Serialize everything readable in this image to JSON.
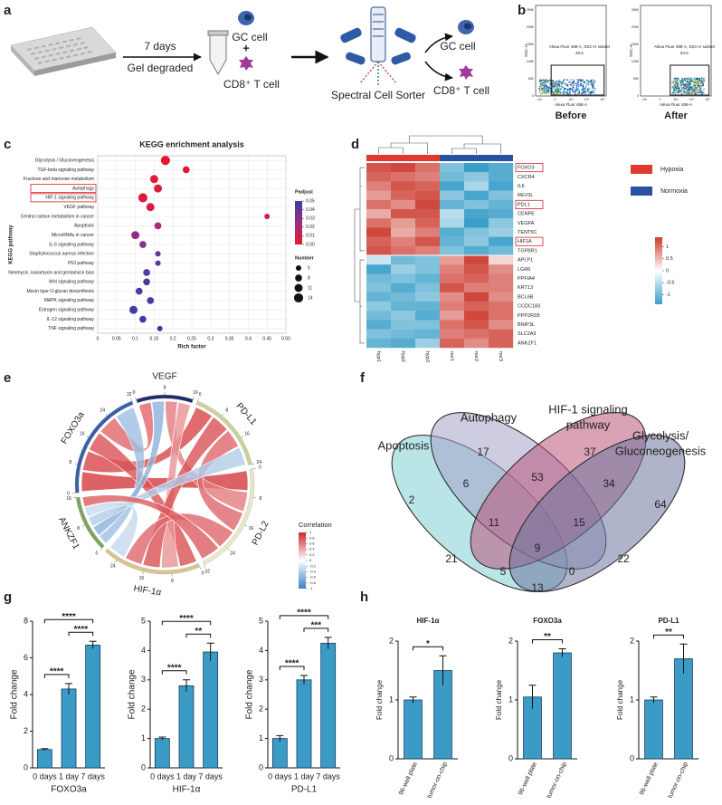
{
  "panel_labels": [
    "a",
    "b",
    "c",
    "d",
    "e",
    "f",
    "g",
    "h"
  ],
  "diagram_a": {
    "step_time": "7 days",
    "step_action": "Gel degraded",
    "input_cell_1": "GC cell",
    "plus": "+",
    "input_cell_2": "CD8⁺ T cell",
    "sorter": "Spectral Cell Sorter",
    "output_cell_1": "GC cell",
    "output_cell_2": "CD8⁺ T cell"
  },
  "diagram_b": {
    "y_label": "SSC-H",
    "x_label": "Alexa Fluor 488-A",
    "yticks": [
      "0",
      "50K",
      "100K",
      "150K",
      "200K",
      "250K"
    ],
    "xticks": [
      "-10³",
      "0",
      "10³",
      "10⁴",
      "10⁵"
    ],
    "plots": [
      {
        "caption": "Before",
        "gate_label": "Alexa Fluor 488-A, SSC-H subset",
        "percent": "49.5"
      },
      {
        "caption": "After",
        "gate_label": "Alexa Fluor 488-A, SSC-H subset",
        "percent": "94.6"
      }
    ]
  },
  "chart_data": [
    {
      "type": "dot",
      "title": "KEGG enrichment analysis",
      "x_label": "Rich factor",
      "y_label": "KEGG pathway",
      "categories": [
        "Glycolysis / Gluconeogenesis",
        "TGF-beta signaling pathway",
        "Fructose and mannose metabolism",
        "Autophagy",
        "HIF-1 signaling pathway",
        "VEGF pathway",
        "Central carbon metabolism in cancer",
        "Apoptosis",
        "MicroRNAs in cancer",
        "IL-6 signaling pathway",
        "Staphylococcus aureus infection",
        "P53 pathway",
        "Neomycin, kanamycin and gentamicin bios",
        "Wnt signaling pathway",
        "Mucin type O-glycan biosynthesis",
        "MAPK signaling pathway",
        "Estrogen signaling pathway",
        "IL-12 signaling pathway",
        "TNF signaling pathway"
      ],
      "values": [
        0.18,
        0.235,
        0.15,
        0.16,
        0.12,
        0.14,
        0.45,
        0.16,
        0.1,
        0.12,
        0.16,
        0.16,
        0.13,
        0.13,
        0.11,
        0.14,
        0.095,
        0.12,
        0.165
      ],
      "padj": [
        0.001,
        0.002,
        0.003,
        0.004,
        0.005,
        0.006,
        0.008,
        0.02,
        0.028,
        0.03,
        0.04,
        0.042,
        0.044,
        0.045,
        0.046,
        0.047,
        0.048,
        0.049,
        0.05
      ],
      "counts": [
        14,
        8,
        11,
        11,
        14,
        11,
        5,
        8,
        11,
        8,
        5,
        5,
        8,
        8,
        8,
        8,
        11,
        8,
        5
      ],
      "xlim": [
        0,
        0.5
      ],
      "xticks": [
        0,
        0.05,
        0.1,
        0.15,
        0.2,
        0.25,
        0.3,
        0.35,
        0.4,
        0.45,
        {
          "value": 0.5,
          "label": "0.50"
        }
      ],
      "grid": true,
      "colors": [
        "#e8182a",
        "#a02b84",
        "#3c3da2"
      ],
      "color_title": "Padjust",
      "color_ticks": [
        {
          "value": 0.05,
          "label": "0.05"
        },
        {
          "value": 0.04,
          "label": "0.04"
        },
        {
          "value": 0.03,
          "label": "0.03"
        },
        {
          "value": 0.02,
          "label": "0.02"
        },
        {
          "value": 0.01,
          "label": "0.01"
        },
        {
          "value": 0,
          "label": "0.00"
        }
      ],
      "size_title": "Number",
      "size_ticks": [
        5,
        8,
        11,
        14
      ],
      "boxed": [
        3,
        4
      ]
    },
    {
      "type": "heatmap",
      "columns": [
        "hyp1",
        "hyp2",
        "hyp3",
        "nor1",
        "nor2",
        "nor3"
      ],
      "column_groups": [
        0,
        0,
        0,
        1,
        1,
        1
      ],
      "groups": [
        {
          "name": "Hypoxia",
          "color": "#e2392f"
        },
        {
          "name": "Normoxia",
          "color": "#2a50a2"
        }
      ],
      "rows": [
        "FOXO3",
        "CXCR4",
        "IL6",
        "REV3L",
        "PDL1",
        "CENPE",
        "VEGFA",
        "TENT5C",
        "HIF1A",
        "TGFBR1",
        "APLP1",
        "LGR6",
        "PPFIA4",
        "KRT13",
        "BCL6B",
        "CCDC183",
        "PPP2R1B",
        "BNIP3L",
        "SLC2A3",
        "ANKZF1"
      ],
      "values": [
        [
          1.2,
          1.3,
          1.0,
          -0.9,
          -1.4,
          -1.2
        ],
        [
          1.1,
          1.0,
          0.9,
          -1.0,
          -0.8,
          -1.2
        ],
        [
          0.9,
          1.2,
          1.1,
          -1.3,
          -0.6,
          -1.3
        ],
        [
          0.7,
          1.1,
          1.2,
          -0.8,
          -1.3,
          -0.9
        ],
        [
          1.0,
          0.8,
          1.3,
          -1.1,
          -0.9,
          -1.1
        ],
        [
          0.6,
          1.2,
          1.2,
          -0.5,
          -1.3,
          -1.2
        ],
        [
          1.0,
          0.7,
          1.1,
          -0.6,
          -1.4,
          -0.8
        ],
        [
          1.3,
          0.6,
          0.9,
          -1.2,
          -0.9,
          -0.7
        ],
        [
          1.1,
          0.9,
          1.2,
          -1.1,
          -0.8,
          -1.3
        ],
        [
          1.2,
          1.0,
          0.9,
          -0.9,
          -1.2,
          -1.0
        ],
        [
          -0.4,
          -1.0,
          -0.9,
          0.7,
          1.3,
          0.3
        ],
        [
          -1.3,
          -0.7,
          -0.9,
          0.9,
          1.2,
          0.8
        ],
        [
          -1.0,
          -0.9,
          -1.1,
          1.0,
          1.1,
          0.9
        ],
        [
          -0.9,
          -1.2,
          -0.9,
          1.2,
          0.9,
          0.9
        ],
        [
          -1.1,
          -1.0,
          -0.8,
          0.8,
          1.3,
          0.8
        ],
        [
          -0.8,
          -1.1,
          -1.1,
          0.9,
          1.1,
          1.0
        ],
        [
          -1.0,
          -0.8,
          -1.2,
          0.7,
          1.3,
          1.0
        ],
        [
          -1.2,
          -0.9,
          -0.9,
          1.0,
          1.2,
          0.8
        ],
        [
          -0.9,
          -1.0,
          -1.1,
          0.9,
          1.0,
          1.1
        ],
        [
          -1.1,
          -1.2,
          -0.7,
          1.1,
          0.8,
          1.1
        ]
      ],
      "clim": [
        -1.4,
        1.4
      ],
      "cticks": [
        1,
        0.5,
        0,
        -0.5,
        -1
      ],
      "colors": [
        "#3a9fc8",
        "#ffffff",
        "#cc3a2e"
      ],
      "boxed": [
        0,
        4,
        8
      ]
    },
    {
      "type": "chord",
      "segments": [
        {
          "name": "VEGF",
          "color": "#1f2d6b",
          "size": 16,
          "ticks": [
            0,
            8,
            16
          ]
        },
        {
          "name": "PD-L1",
          "color": "#c8d39a",
          "size": 24,
          "ticks": [
            0,
            8,
            16,
            24
          ]
        },
        {
          "name": "PD-L2",
          "color": "#ece7c6",
          "size": 32,
          "ticks": [
            0,
            8,
            16,
            24,
            32
          ]
        },
        {
          "name": "HIF-1α",
          "color": "#d9c58e",
          "size": 28,
          "ticks": [
            0,
            8,
            16,
            24
          ]
        },
        {
          "name": "ANKZF1",
          "color": "#7ea35e",
          "size": 16,
          "ticks": [
            0,
            8,
            16
          ]
        },
        {
          "name": "FOXO3a",
          "color": "#3b5fa6",
          "size": 32,
          "ticks": [
            0,
            8,
            16,
            24,
            32
          ]
        }
      ],
      "links": [
        {
          "source": 5,
          "target": 2,
          "value": 0.9
        },
        {
          "source": 5,
          "target": 1,
          "value": 0.85
        },
        {
          "source": 5,
          "target": 3,
          "value": 0.8
        },
        {
          "source": 5,
          "target": 0,
          "value": 0.7
        },
        {
          "source": 5,
          "target": 4,
          "value": -0.5
        },
        {
          "source": 0,
          "target": 4,
          "value": -0.6
        },
        {
          "source": 0,
          "target": 2,
          "value": 0.6
        },
        {
          "source": 0,
          "target": 3,
          "value": 0.5
        },
        {
          "source": 1,
          "target": 3,
          "value": 0.8
        },
        {
          "source": 1,
          "target": 2,
          "value": 0.7
        },
        {
          "source": 1,
          "target": 4,
          "value": -0.4
        },
        {
          "source": 2,
          "target": 3,
          "value": 0.7
        },
        {
          "source": 4,
          "target": 3,
          "value": -0.3
        },
        {
          "source": 4,
          "target": 2,
          "value": 0.75
        }
      ],
      "legend_title": "Correlation",
      "clim": [
        -1,
        1
      ],
      "cticks": [
        1,
        0.8,
        0.6,
        0.4,
        0.2,
        0,
        -0.2,
        -0.4,
        -0.6,
        -0.8,
        -1
      ],
      "colors": [
        "#3d7fc4",
        "#ffffff",
        "#d0252b"
      ]
    },
    {
      "type": "bar",
      "x_label": "FOXO3a",
      "y_label": "Fold change",
      "categories": [
        "0 days",
        "1 day",
        "7 days"
      ],
      "values": [
        1,
        4.3,
        6.7
      ],
      "errors": [
        0.05,
        0.3,
        0.2
      ],
      "ylim": [
        0,
        8
      ],
      "yticks": [
        0,
        2,
        4,
        6,
        8
      ],
      "color": "#3a9cc6",
      "edge_color": "#1d3b57",
      "rotate_labels": false,
      "significance": [
        {
          "pair": [
            0,
            1
          ],
          "label": "****"
        },
        {
          "pair": [
            1,
            2
          ],
          "label": "****"
        },
        {
          "pair": [
            0,
            2
          ],
          "label": "****"
        }
      ]
    },
    {
      "type": "bar",
      "x_label": "HIF-1α",
      "y_label": "Fold change",
      "categories": [
        "0 days",
        "1 day",
        "7 days"
      ],
      "values": [
        1,
        2.8,
        3.95
      ],
      "errors": [
        0.05,
        0.2,
        0.3
      ],
      "ylim": [
        0,
        5
      ],
      "yticks": [
        0,
        1,
        2,
        3,
        4,
        5
      ],
      "color": "#3a9cc6",
      "edge_color": "#1d3b57",
      "rotate_labels": false,
      "significance": [
        {
          "pair": [
            0,
            1
          ],
          "label": "****"
        },
        {
          "pair": [
            1,
            2
          ],
          "label": "**"
        },
        {
          "pair": [
            0,
            2
          ],
          "label": "****"
        }
      ]
    },
    {
      "type": "bar",
      "x_label": "PD-L1",
      "y_label": "Fold change",
      "categories": [
        "0 days",
        "1 day",
        "7 days"
      ],
      "values": [
        1,
        3.0,
        4.25
      ],
      "errors": [
        0.1,
        0.15,
        0.2
      ],
      "ylim": [
        0,
        5
      ],
      "yticks": [
        0,
        1,
        2,
        3,
        4,
        5
      ],
      "color": "#3a9cc6",
      "edge_color": "#1d3b57",
      "rotate_labels": false,
      "significance": [
        {
          "pair": [
            0,
            1
          ],
          "label": "****"
        },
        {
          "pair": [
            1,
            2
          ],
          "label": "***"
        },
        {
          "pair": [
            0,
            2
          ],
          "label": "****"
        }
      ]
    },
    {
      "type": "bar",
      "title": "HIF-1α",
      "y_label": "Fold change",
      "categories": [
        "96-well plate",
        "tumor-on-chip"
      ],
      "values": [
        1,
        1.5
      ],
      "errors": [
        0.05,
        0.25
      ],
      "ylim": [
        0,
        2
      ],
      "yticks": [
        0,
        1,
        2
      ],
      "color": "#3a9cc6",
      "edge_color": "#1d3b57",
      "rotate_labels": true,
      "significance": [
        {
          "pair": [
            0,
            1
          ],
          "label": "*"
        }
      ]
    },
    {
      "type": "bar",
      "title": "FOXO3a",
      "y_label": "Fold change",
      "categories": [
        "96-well plate",
        "tumor-on-chip"
      ],
      "values": [
        1.05,
        1.8
      ],
      "errors": [
        0.2,
        0.07
      ],
      "ylim": [
        0,
        2
      ],
      "yticks": [
        0,
        1,
        2
      ],
      "color": "#3a9cc6",
      "edge_color": "#1d3b57",
      "rotate_labels": true,
      "significance": [
        {
          "pair": [
            0,
            1
          ],
          "label": "**"
        }
      ]
    },
    {
      "type": "bar",
      "title": "PD-L1",
      "y_label": "Fold change",
      "categories": [
        "96-well plate",
        "tumor-on-chip"
      ],
      "values": [
        1.0,
        1.7
      ],
      "errors": [
        0.05,
        0.25
      ],
      "ylim": [
        0,
        2
      ],
      "yticks": [
        0,
        1,
        2
      ],
      "color": "#3a9cc6",
      "edge_color": "#1d3b57",
      "rotate_labels": true,
      "significance": [
        {
          "pair": [
            0,
            1
          ],
          "label": "**"
        }
      ]
    }
  ],
  "venn": {
    "sets": [
      {
        "lines": [
          "Apoptosis"
        ],
        "color": "#7fd0d3"
      },
      {
        "lines": [
          "Autophagy"
        ],
        "color": "#a4a3c6"
      },
      {
        "lines": [
          "HIF-1 signaling",
          "pathway"
        ],
        "color": "#b9557b"
      },
      {
        "lines": [
          "Glycolysis/",
          "Gluconeogenesis"
        ],
        "color": "#6f769e"
      }
    ],
    "regions": [
      "2",
      "17",
      "37",
      "64",
      "6",
      "53",
      "34",
      "11",
      "15",
      "21",
      "9",
      "22",
      "5",
      "0",
      "13"
    ]
  }
}
